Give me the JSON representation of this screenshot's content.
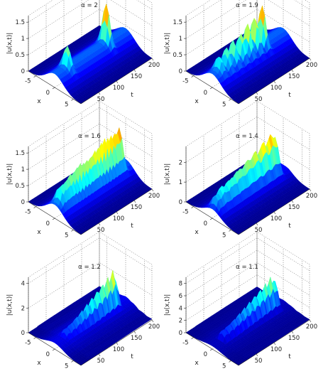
{
  "chart_data": [
    {
      "type": "surface",
      "title": "α = 2",
      "xlabel": "x",
      "ylabel": "t",
      "zlabel": "|u(x,t)|",
      "xlim": [
        -7,
        7
      ],
      "ylim": [
        0,
        200
      ],
      "zlim": [
        0,
        1.7
      ],
      "xticks": [
        "-5",
        "0",
        "5"
      ],
      "yticks": [
        "50",
        "100",
        "150",
        "200"
      ],
      "zticks": [
        "0",
        "0.5",
        "1",
        "1.5"
      ],
      "grid": true,
      "base": 0.42,
      "peak_count": 2,
      "peaks": [
        {
          "t": 35,
          "x": 0,
          "value": 1.05
        },
        {
          "t": 145,
          "x": 0,
          "value": 1.55
        }
      ]
    },
    {
      "type": "surface",
      "title": "α = 1.9",
      "xlabel": "x",
      "ylabel": "t",
      "zlabel": "|u(x,t)|",
      "xlim": [
        -7,
        7
      ],
      "ylim": [
        0,
        200
      ],
      "zlim": [
        0,
        1.7
      ],
      "xticks": [
        "-5",
        "0",
        "5"
      ],
      "yticks": [
        "50",
        "100",
        "150",
        "200"
      ],
      "zticks": [
        "0",
        "0.5",
        "1",
        "1.5"
      ],
      "grid": true,
      "base": 0.42,
      "peak_count": 7,
      "peaks": [
        {
          "t": 20,
          "x": 0,
          "value": 0.85
        },
        {
          "t": 40,
          "x": 0,
          "value": 0.95
        },
        {
          "t": 60,
          "x": 0,
          "value": 1.05
        },
        {
          "t": 80,
          "x": 0,
          "value": 1.15
        },
        {
          "t": 100,
          "x": 0,
          "value": 1.25
        },
        {
          "t": 120,
          "x": 0,
          "value": 1.4
        },
        {
          "t": 140,
          "x": 0,
          "value": 1.55
        }
      ]
    },
    {
      "type": "surface",
      "title": "α = 1.6",
      "xlabel": "x",
      "ylabel": "t",
      "zlabel": "|u(x,t)|",
      "xlim": [
        -7,
        7
      ],
      "ylim": [
        0,
        200
      ],
      "zlim": [
        0,
        1.7
      ],
      "xticks": [
        "-5",
        "0",
        "5"
      ],
      "yticks": [
        "50",
        "100",
        "150",
        "200"
      ],
      "zticks": [
        "0",
        "0.5",
        "1",
        "1.5"
      ],
      "grid": true,
      "base": 0.42,
      "peak_count": 18,
      "peak_start": 15,
      "peak_end": 180,
      "peak_min": 0.8,
      "peak_max": 1.6,
      "after_last_peak": 0.5
    },
    {
      "type": "surface",
      "title": "α = 1.4",
      "xlabel": "x",
      "ylabel": "t",
      "zlabel": "|u(x,t)|",
      "xlim": [
        -7,
        7
      ],
      "ylim": [
        0,
        200
      ],
      "zlim": [
        0,
        2.8
      ],
      "xticks": [
        "-5",
        "0",
        "5"
      ],
      "yticks": [
        "50",
        "100",
        "150",
        "200"
      ],
      "zticks": [
        "0",
        "1",
        "2"
      ],
      "grid": true,
      "base": 0.45,
      "peak_count": 30,
      "peak_start": 10,
      "peak_end": 175,
      "peak_min": 0.9,
      "peak_max": 2.4,
      "after_last_peak": 0.4
    },
    {
      "type": "surface",
      "title": "α = 1.2",
      "xlabel": "x",
      "ylabel": "t",
      "zlabel": "|u(x,t)|",
      "xlim": [
        -7,
        7
      ],
      "ylim": [
        0,
        200
      ],
      "zlim": [
        0,
        4.5
      ],
      "xticks": [
        "-5",
        "0",
        "5"
      ],
      "yticks": [
        "50",
        "100",
        "150",
        "200"
      ],
      "zticks": [
        "0",
        "2",
        "4"
      ],
      "grid": true,
      "base": 0.5,
      "ridge_start": 25,
      "ridge_end": 170,
      "ridge_min": 1.1,
      "ridge_max": 4.0
    },
    {
      "type": "surface",
      "title": "α = 1.1",
      "xlabel": "x",
      "ylabel": "t",
      "zlabel": "|u(x,t)|",
      "xlim": [
        -7,
        7
      ],
      "ylim": [
        0,
        200
      ],
      "zlim": [
        0,
        9
      ],
      "xticks": [
        "-5",
        "0",
        "5"
      ],
      "yticks": [
        "50",
        "100",
        "150",
        "200"
      ],
      "zticks": [
        "0",
        "2",
        "4",
        "6",
        "8"
      ],
      "grid": true,
      "base": 0.5,
      "ridge_start": 25,
      "ridge_end": 175,
      "ridge_min": 2.0,
      "ridge_max": 7.0
    }
  ],
  "colormap": [
    "#00008f",
    "#0000ff",
    "#0080ff",
    "#00ffff",
    "#80ff80",
    "#ffff00",
    "#ff8000",
    "#ff0000",
    "#800000"
  ]
}
